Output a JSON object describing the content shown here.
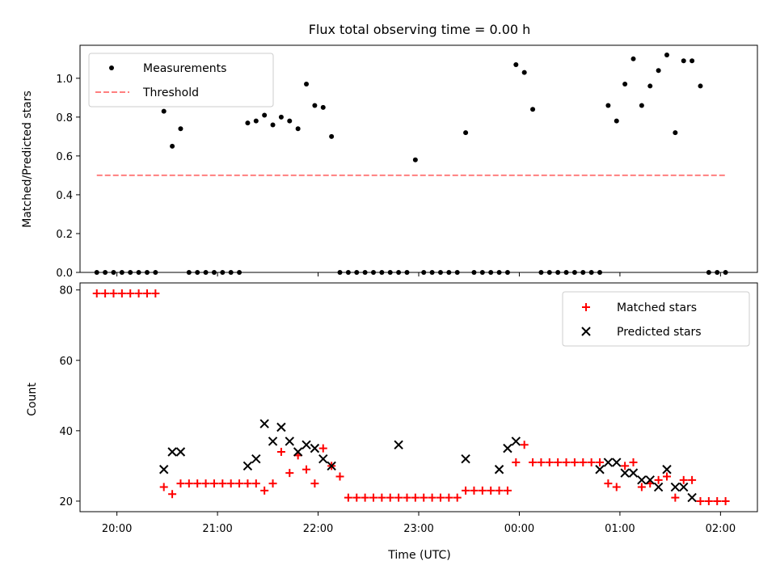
{
  "colors": {
    "measurement": "#000000",
    "threshold": "#ff7f7f",
    "matched": "#ff0000",
    "predicted": "#000000"
  },
  "chart_data": [
    {
      "type": "scatter",
      "title": "Flux total observing time = 0.00 h",
      "xlabel": "",
      "ylabel": "Matched/Predicted stars",
      "ylim": [
        0,
        1.17
      ],
      "xlim": [
        "19:38",
        "02:22"
      ],
      "yticks": [
        "0.0",
        "0.2",
        "0.4",
        "0.6",
        "0.8",
        "1.0"
      ],
      "legend": {
        "placement": "top-left",
        "entries": [
          "Measurements",
          "Threshold"
        ]
      },
      "series": [
        {
          "name": "Measurements",
          "marker": "dot",
          "x": [
            "19:48",
            "19:53",
            "19:58",
            "20:03",
            "20:08",
            "20:13",
            "20:18",
            "20:23",
            "20:28",
            "20:33",
            "20:38",
            "20:43",
            "20:48",
            "20:53",
            "20:58",
            "21:03",
            "21:08",
            "21:13",
            "21:18",
            "21:23",
            "21:28",
            "21:33",
            "21:38",
            "21:43",
            "21:48",
            "21:53",
            "21:58",
            "22:03",
            "22:08",
            "22:13",
            "22:18",
            "22:23",
            "22:28",
            "22:33",
            "22:38",
            "22:43",
            "22:48",
            "22:53",
            "22:58",
            "23:03",
            "23:08",
            "23:13",
            "23:18",
            "23:23",
            "23:28",
            "23:33",
            "23:38",
            "23:43",
            "23:48",
            "23:53",
            "23:58",
            "00:03",
            "00:08",
            "00:13",
            "00:18",
            "00:23",
            "00:28",
            "00:33",
            "00:38",
            "00:43",
            "00:48",
            "00:53",
            "00:58",
            "01:03",
            "01:08",
            "01:13",
            "01:18",
            "01:23",
            "01:28",
            "01:33",
            "01:38",
            "01:43",
            "01:48",
            "01:53",
            "01:58",
            "02:03"
          ],
          "y": [
            0,
            0,
            0,
            0,
            0,
            0,
            0,
            0,
            0.83,
            0.65,
            0.74,
            0,
            0,
            0,
            0,
            0,
            0,
            0,
            0.77,
            0.78,
            0.81,
            0.76,
            0.8,
            0.78,
            0.74,
            0.97,
            0.86,
            0.85,
            0.7,
            0,
            0,
            0,
            0,
            0,
            0,
            0,
            0,
            0,
            0.58,
            0,
            0,
            0,
            0,
            0,
            0.72,
            0,
            0,
            0,
            0,
            0,
            1.07,
            1.03,
            0.84,
            0,
            0,
            0,
            0,
            0,
            0,
            0,
            0,
            0.86,
            0.78,
            0.97,
            1.1,
            0.86,
            0.96,
            1.04,
            1.12,
            0.72,
            1.09,
            1.09,
            0.96,
            0,
            0,
            0
          ]
        },
        {
          "name": "Threshold",
          "style": "dashed",
          "x": [
            "19:48",
            "02:03"
          ],
          "y": [
            0.5,
            0.5
          ]
        }
      ]
    },
    {
      "type": "scatter",
      "title": "",
      "xlabel": "Time (UTC)",
      "ylabel": "Count",
      "ylim": [
        17,
        82
      ],
      "xlim": [
        "19:38",
        "02:22"
      ],
      "xticks": [
        "20:00",
        "21:00",
        "22:00",
        "23:00",
        "00:00",
        "01:00",
        "02:00"
      ],
      "yticks": [
        "20",
        "40",
        "60",
        "80"
      ],
      "legend": {
        "placement": "top-right",
        "entries": [
          "Matched stars",
          "Predicted stars"
        ]
      },
      "series": [
        {
          "name": "Matched stars",
          "marker": "+",
          "x": [
            "19:48",
            "19:53",
            "19:58",
            "20:03",
            "20:08",
            "20:13",
            "20:18",
            "20:23",
            "20:28",
            "20:33",
            "20:38",
            "20:43",
            "20:48",
            "20:53",
            "20:58",
            "21:03",
            "21:08",
            "21:13",
            "21:18",
            "21:23",
            "21:28",
            "21:33",
            "21:38",
            "21:43",
            "21:48",
            "21:53",
            "21:58",
            "22:03",
            "22:08",
            "22:13",
            "22:18",
            "22:23",
            "22:28",
            "22:33",
            "22:38",
            "22:43",
            "22:48",
            "22:53",
            "22:58",
            "23:03",
            "23:08",
            "23:13",
            "23:18",
            "23:23",
            "23:28",
            "23:33",
            "23:38",
            "23:43",
            "23:48",
            "23:53",
            "23:58",
            "00:03",
            "00:08",
            "00:13",
            "00:18",
            "00:23",
            "00:28",
            "00:33",
            "00:38",
            "00:43",
            "00:48",
            "00:53",
            "00:58",
            "01:03",
            "01:08",
            "01:13",
            "01:18",
            "01:23",
            "01:28",
            "01:33",
            "01:38",
            "01:43",
            "01:48",
            "01:53",
            "01:58",
            "02:03"
          ],
          "y": [
            79,
            79,
            79,
            79,
            79,
            79,
            79,
            79,
            24,
            22,
            25,
            25,
            25,
            25,
            25,
            25,
            25,
            25,
            25,
            25,
            23,
            25,
            34,
            28,
            33,
            29,
            25,
            35,
            30,
            27,
            21,
            21,
            21,
            21,
            21,
            21,
            21,
            21,
            21,
            21,
            21,
            21,
            21,
            21,
            23,
            23,
            23,
            23,
            23,
            23,
            31,
            36,
            31,
            31,
            31,
            31,
            31,
            31,
            31,
            31,
            31,
            25,
            24,
            30,
            31,
            24,
            25,
            26,
            27,
            21,
            26,
            26,
            20,
            20,
            20,
            20
          ]
        },
        {
          "name": "Predicted stars",
          "marker": "x",
          "x": [
            "20:28",
            "20:33",
            "20:38",
            "21:18",
            "21:23",
            "21:28",
            "21:33",
            "21:38",
            "21:43",
            "21:48",
            "21:53",
            "21:58",
            "22:03",
            "22:08",
            "22:48",
            "23:28",
            "23:48",
            "23:53",
            "23:58",
            "00:48",
            "00:53",
            "00:58",
            "01:03",
            "01:08",
            "01:13",
            "01:18",
            "01:23",
            "01:28",
            "01:33",
            "01:38",
            "01:43"
          ],
          "y": [
            29,
            34,
            34,
            30,
            32,
            42,
            37,
            41,
            37,
            34,
            36,
            35,
            32,
            30,
            36,
            32,
            29,
            35,
            37,
            29,
            31,
            31,
            28,
            28,
            26,
            26,
            24,
            29,
            24,
            24,
            21
          ]
        }
      ]
    }
  ]
}
